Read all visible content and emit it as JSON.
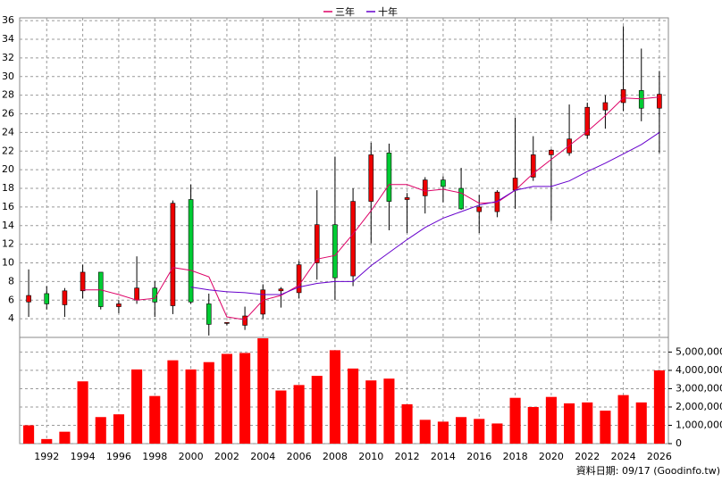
{
  "chart_data": {
    "type": "candlestick",
    "categories": [
      null,
      "1992",
      null,
      "1994",
      null,
      "1996",
      null,
      "1998",
      null,
      "2000",
      null,
      "2002",
      null,
      "2004",
      null,
      "2006",
      null,
      "2008",
      null,
      "2010",
      null,
      "2012",
      null,
      "2014",
      null,
      "2016",
      null,
      "2018",
      null,
      "2020",
      null,
      "2022",
      null,
      "2024",
      null,
      "2026"
    ],
    "open": [
      5.8,
      6.7,
      5.5,
      7.0,
      9.0,
      5.3,
      6.0,
      7.3,
      5.4,
      16.8,
      5.6,
      3.5,
      3.3,
      4.5,
      7.0,
      6.8,
      10.0,
      14.1,
      8.6,
      16.6,
      21.8,
      16.8,
      17.2,
      18.9,
      18.0,
      15.5,
      15.5,
      17.8,
      19.2,
      21.6,
      21.8,
      23.7,
      26.4,
      27.2,
      28.5,
      26.6
    ],
    "high": [
      9.3,
      7.5,
      7.3,
      9.8,
      9.0,
      6.0,
      10.7,
      8.0,
      16.7,
      18.4,
      6.7,
      3.6,
      5.3,
      7.7,
      7.4,
      10.2,
      17.8,
      21.4,
      18.0,
      22.9,
      22.8,
      17.5,
      19.2,
      19.3,
      20.2,
      17.3,
      17.8,
      25.6,
      23.6,
      22.2,
      27.0,
      27.2,
      28.0,
      35.4,
      33.0,
      30.6
    ],
    "low": [
      4.2,
      5.0,
      4.2,
      6.2,
      5.0,
      4.6,
      5.6,
      4.2,
      4.5,
      5.6,
      2.2,
      3.3,
      2.8,
      4.0,
      5.2,
      6.2,
      8.2,
      6.0,
      7.5,
      12.1,
      13.5,
      13.2,
      15.3,
      16.5,
      15.7,
      13.2,
      14.9,
      15.8,
      18.8,
      14.5,
      21.5,
      23.3,
      24.4,
      26.3,
      25.2,
      21.8
    ],
    "close": [
      6.5,
      5.6,
      7.0,
      9.0,
      5.3,
      5.6,
      7.3,
      5.8,
      16.4,
      5.8,
      3.4,
      3.6,
      4.3,
      7.1,
      7.2,
      9.8,
      14.1,
      8.4,
      16.6,
      21.6,
      16.6,
      17.0,
      18.9,
      18.2,
      15.8,
      16.0,
      17.6,
      19.1,
      21.6,
      22.1,
      23.3,
      26.7,
      27.2,
      28.6,
      26.6,
      28.1
    ],
    "up_color": "#ee0000",
    "down_color": "#00cc33",
    "series": [
      {
        "name": "三年",
        "color": "#dd0066",
        "values": [
          null,
          null,
          null,
          7.1,
          7.1,
          6.6,
          6.0,
          6.2,
          9.5,
          9.2,
          8.5,
          4.2,
          3.9,
          6.0,
          6.5,
          7.6,
          10.4,
          10.8,
          13.1,
          15.6,
          18.4,
          18.4,
          17.7,
          17.9,
          17.5,
          16.4,
          16.5,
          17.8,
          19.6,
          21.1,
          22.6,
          24.1,
          25.8,
          27.7,
          27.6,
          27.8
        ]
      },
      {
        "name": "十年",
        "color": "#6600cc",
        "values": [
          null,
          null,
          null,
          null,
          null,
          null,
          null,
          null,
          null,
          7.4,
          7.1,
          6.9,
          6.8,
          6.6,
          6.6,
          7.4,
          7.8,
          8.0,
          8.0,
          9.7,
          11.1,
          12.5,
          13.8,
          14.8,
          15.5,
          16.2,
          16.6,
          17.8,
          18.2,
          18.2,
          18.8,
          19.8,
          20.7,
          21.7,
          22.7,
          24.0
        ]
      }
    ],
    "ylim": [
      2,
      36.3
    ],
    "yticks": [
      4,
      6,
      8,
      10,
      12,
      14,
      16,
      18,
      20,
      22,
      24,
      26,
      28,
      30,
      32,
      34,
      36
    ],
    "volume": {
      "color": "#ff0000",
      "values": [
        1000000,
        250000,
        650000,
        3400000,
        1450000,
        1600000,
        4050000,
        2600000,
        4550000,
        4050000,
        4450000,
        4900000,
        4950000,
        5750000,
        2900000,
        3200000,
        3700000,
        5100000,
        4100000,
        3450000,
        3550000,
        2150000,
        1300000,
        1200000,
        1450000,
        1350000,
        1100000,
        2500000,
        2000000,
        2550000,
        2200000,
        2250000,
        1800000,
        2650000,
        2250000,
        4000000
      ],
      "ylim": [
        0,
        5800000
      ],
      "yticks": [
        0,
        {
          "value": 1000000,
          "label": "1,000,000"
        },
        {
          "value": 2000000,
          "label": "2,000,000"
        },
        {
          "value": 3000000,
          "label": "3,000,000"
        },
        {
          "value": 4000000,
          "label": "4,000,000"
        },
        {
          "value": 5000000,
          "label": "5,000,000"
        }
      ]
    },
    "grid": true,
    "footer": "資料日期: 09/17  (Goodinfo.tw)"
  }
}
